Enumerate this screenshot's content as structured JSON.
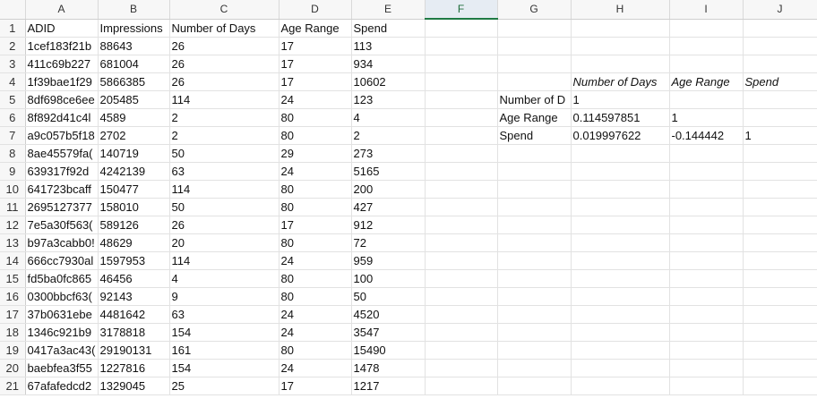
{
  "columns": [
    "A",
    "B",
    "C",
    "D",
    "E",
    "F",
    "G",
    "H",
    "I",
    "J"
  ],
  "selected_column": "F",
  "rows": [
    {
      "n": "1",
      "a": "ADID",
      "b": "Impressions",
      "c": "Number of Days",
      "d": "Age Range",
      "e": "Spend",
      "g": "",
      "h": "",
      "i": "",
      "j": ""
    },
    {
      "n": "2",
      "a": "1cef183f21b",
      "b": "88643",
      "c": "26",
      "d": "17",
      "e": "113",
      "g": "",
      "h": "",
      "i": "",
      "j": ""
    },
    {
      "n": "3",
      "a": "411c69b227",
      "b": "681004",
      "c": "26",
      "d": "17",
      "e": "934",
      "g": "",
      "h": "",
      "i": "",
      "j": ""
    },
    {
      "n": "4",
      "a": "1f39bae1f29",
      "b": "5866385",
      "c": "26",
      "d": "17",
      "e": "10602",
      "g": "",
      "h": "Number of Days",
      "i": "Age Range",
      "j": "Spend"
    },
    {
      "n": "5",
      "a": "8df698ce6ee",
      "b": "205485",
      "c": "114",
      "d": "24",
      "e": "123",
      "g": "Number of D",
      "h": "1",
      "i": "",
      "j": ""
    },
    {
      "n": "6",
      "a": "8f892d41c4l",
      "b": "4589",
      "c": "2",
      "d": "80",
      "e": "4",
      "g": "Age Range",
      "h": "0.114597851",
      "i": "1",
      "j": ""
    },
    {
      "n": "7",
      "a": "a9c057b5f18",
      "b": "2702",
      "c": "2",
      "d": "80",
      "e": "2",
      "g": "Spend",
      "h": "0.019997622",
      "i": "-0.144442",
      "j": "1"
    },
    {
      "n": "8",
      "a": "8ae45579fa(",
      "b": "140719",
      "c": "50",
      "d": "29",
      "e": "273",
      "g": "",
      "h": "",
      "i": "",
      "j": ""
    },
    {
      "n": "9",
      "a": "639317f92d",
      "b": "4242139",
      "c": "63",
      "d": "24",
      "e": "5165",
      "g": "",
      "h": "",
      "i": "",
      "j": ""
    },
    {
      "n": "10",
      "a": "641723bcaff",
      "b": "150477",
      "c": "114",
      "d": "80",
      "e": "200",
      "g": "",
      "h": "",
      "i": "",
      "j": ""
    },
    {
      "n": "11",
      "a": "2695127377",
      "b": "158010",
      "c": "50",
      "d": "80",
      "e": "427",
      "g": "",
      "h": "",
      "i": "",
      "j": ""
    },
    {
      "n": "12",
      "a": "7e5a30f563(",
      "b": "589126",
      "c": "26",
      "d": "17",
      "e": "912",
      "g": "",
      "h": "",
      "i": "",
      "j": ""
    },
    {
      "n": "13",
      "a": "b97a3cabb0!",
      "b": "48629",
      "c": "20",
      "d": "80",
      "e": "72",
      "g": "",
      "h": "",
      "i": "",
      "j": ""
    },
    {
      "n": "14",
      "a": "666cc7930al",
      "b": "1597953",
      "c": "114",
      "d": "24",
      "e": "959",
      "g": "",
      "h": "",
      "i": "",
      "j": ""
    },
    {
      "n": "15",
      "a": "fd5ba0fc865",
      "b": "46456",
      "c": "4",
      "d": "80",
      "e": "100",
      "g": "",
      "h": "",
      "i": "",
      "j": ""
    },
    {
      "n": "16",
      "a": "0300bbcf63(",
      "b": "92143",
      "c": "9",
      "d": "80",
      "e": "50",
      "g": "",
      "h": "",
      "i": "",
      "j": ""
    },
    {
      "n": "17",
      "a": "37b0631ebe",
      "b": "4481642",
      "c": "63",
      "d": "24",
      "e": "4520",
      "g": "",
      "h": "",
      "i": "",
      "j": ""
    },
    {
      "n": "18",
      "a": "1346c921b9",
      "b": "3178818",
      "c": "154",
      "d": "24",
      "e": "3547",
      "g": "",
      "h": "",
      "i": "",
      "j": ""
    },
    {
      "n": "19",
      "a": "0417a3ac43(",
      "b": "29190131",
      "c": "161",
      "d": "80",
      "e": "15490",
      "g": "",
      "h": "",
      "i": "",
      "j": ""
    },
    {
      "n": "20",
      "a": "baebfea3f55",
      "b": "1227816",
      "c": "154",
      "d": "24",
      "e": "1478",
      "g": "",
      "h": "",
      "i": "",
      "j": ""
    },
    {
      "n": "21",
      "a": "67afafedcd2",
      "b": "1329045",
      "c": "25",
      "d": "17",
      "e": "1217",
      "g": "",
      "h": "",
      "i": "",
      "j": ""
    }
  ],
  "colors": {
    "grid_line": "#e2e2e2",
    "header_bg": "#f7f7f7",
    "selected_header_bg": "#e6ecf3",
    "selected_header_text": "#1f6c3a",
    "selected_underline": "#1f7a44"
  }
}
